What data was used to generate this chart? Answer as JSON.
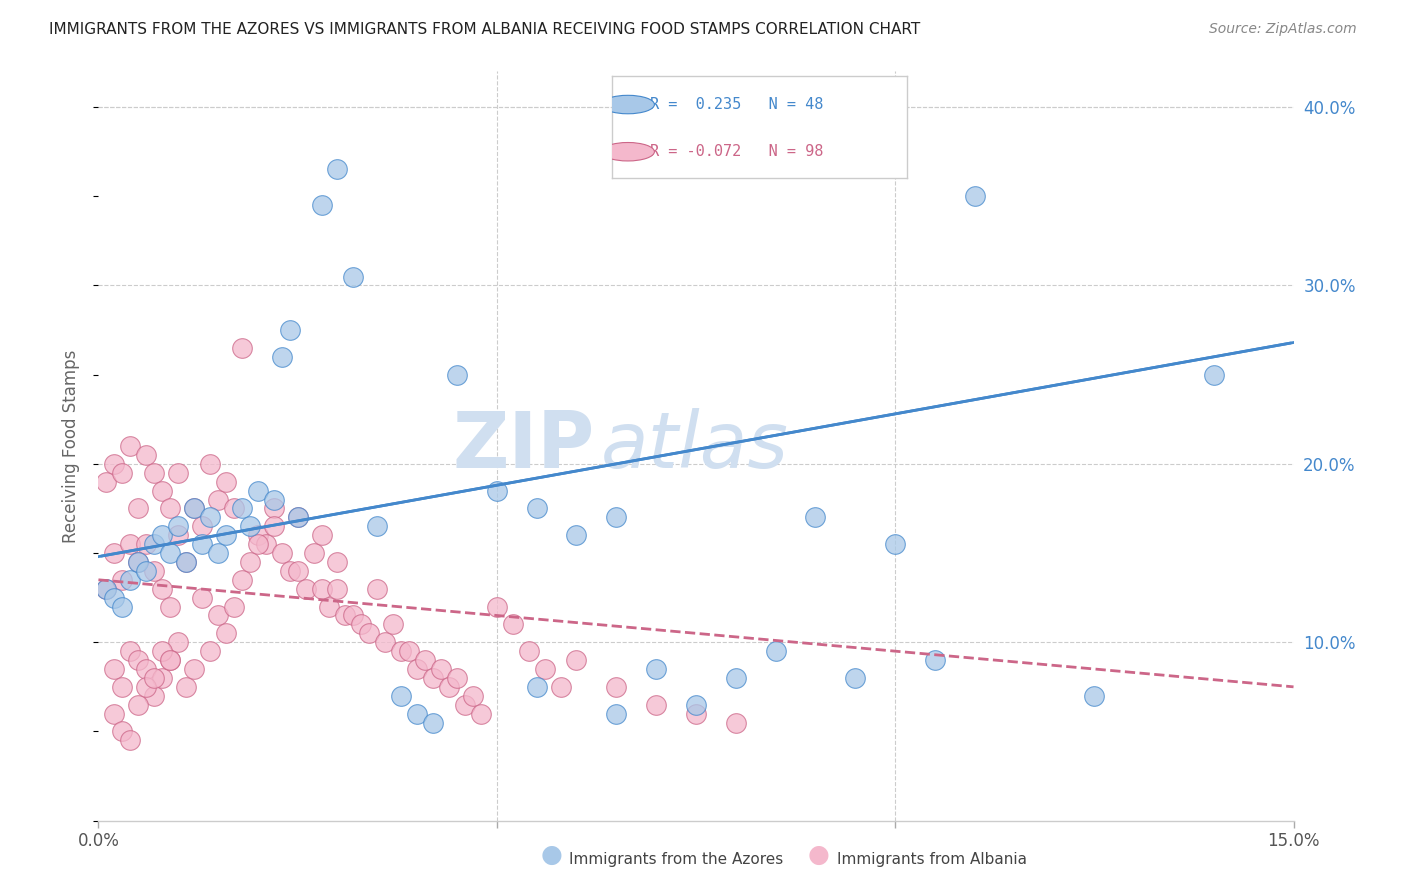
{
  "title": "IMMIGRANTS FROM THE AZORES VS IMMIGRANTS FROM ALBANIA RECEIVING FOOD STAMPS CORRELATION CHART",
  "source": "Source: ZipAtlas.com",
  "ylabel": "Receiving Food Stamps",
  "xlim": [
    0.0,
    0.15
  ],
  "ylim": [
    0.0,
    0.42
  ],
  "y_ticks_right": [
    0.1,
    0.2,
    0.3,
    0.4
  ],
  "y_tick_labels_right": [
    "10.0%",
    "20.0%",
    "30.0%",
    "40.0%"
  ],
  "color_azores": "#a8c8e8",
  "color_albania": "#f4b8cc",
  "color_trend_azores": "#4488cc",
  "color_trend_albania": "#cc6688",
  "watermark_zip": "ZIP",
  "watermark_atlas": "atlas",
  "watermark_color": "#d0dff0",
  "footer_azores": "Immigrants from the Azores",
  "footer_albania": "Immigrants from Albania",
  "azores_x": [
    0.001,
    0.002,
    0.003,
    0.004,
    0.005,
    0.006,
    0.007,
    0.008,
    0.009,
    0.01,
    0.011,
    0.012,
    0.013,
    0.014,
    0.015,
    0.016,
    0.018,
    0.019,
    0.02,
    0.022,
    0.023,
    0.024,
    0.025,
    0.028,
    0.03,
    0.032,
    0.035,
    0.038,
    0.04,
    0.042,
    0.045,
    0.05,
    0.055,
    0.06,
    0.065,
    0.07,
    0.08,
    0.09,
    0.1,
    0.11,
    0.125,
    0.14,
    0.105,
    0.095,
    0.085,
    0.075,
    0.065,
    0.055
  ],
  "azores_y": [
    0.13,
    0.125,
    0.12,
    0.135,
    0.145,
    0.14,
    0.155,
    0.16,
    0.15,
    0.165,
    0.145,
    0.175,
    0.155,
    0.17,
    0.15,
    0.16,
    0.175,
    0.165,
    0.185,
    0.18,
    0.26,
    0.275,
    0.17,
    0.345,
    0.365,
    0.305,
    0.165,
    0.07,
    0.06,
    0.055,
    0.25,
    0.185,
    0.175,
    0.16,
    0.17,
    0.085,
    0.08,
    0.17,
    0.155,
    0.35,
    0.07,
    0.25,
    0.09,
    0.08,
    0.095,
    0.065,
    0.06,
    0.075
  ],
  "albania_x": [
    0.001,
    0.001,
    0.002,
    0.002,
    0.002,
    0.003,
    0.003,
    0.003,
    0.004,
    0.004,
    0.004,
    0.005,
    0.005,
    0.005,
    0.006,
    0.006,
    0.006,
    0.007,
    0.007,
    0.007,
    0.008,
    0.008,
    0.008,
    0.009,
    0.009,
    0.009,
    0.01,
    0.01,
    0.01,
    0.011,
    0.011,
    0.012,
    0.012,
    0.013,
    0.013,
    0.014,
    0.014,
    0.015,
    0.015,
    0.016,
    0.016,
    0.017,
    0.017,
    0.018,
    0.018,
    0.019,
    0.02,
    0.021,
    0.022,
    0.023,
    0.024,
    0.025,
    0.026,
    0.027,
    0.028,
    0.029,
    0.03,
    0.031,
    0.032,
    0.033,
    0.034,
    0.035,
    0.036,
    0.037,
    0.038,
    0.039,
    0.04,
    0.041,
    0.042,
    0.043,
    0.044,
    0.045,
    0.046,
    0.047,
    0.048,
    0.05,
    0.052,
    0.054,
    0.056,
    0.058,
    0.06,
    0.065,
    0.07,
    0.075,
    0.08,
    0.02,
    0.022,
    0.025,
    0.028,
    0.03,
    0.002,
    0.003,
    0.004,
    0.005,
    0.006,
    0.007,
    0.008,
    0.009
  ],
  "albania_y": [
    0.13,
    0.19,
    0.085,
    0.15,
    0.2,
    0.075,
    0.135,
    0.195,
    0.095,
    0.155,
    0.21,
    0.09,
    0.145,
    0.175,
    0.085,
    0.155,
    0.205,
    0.07,
    0.14,
    0.195,
    0.08,
    0.13,
    0.185,
    0.09,
    0.12,
    0.175,
    0.1,
    0.16,
    0.195,
    0.075,
    0.145,
    0.085,
    0.175,
    0.125,
    0.165,
    0.095,
    0.2,
    0.115,
    0.18,
    0.105,
    0.19,
    0.12,
    0.175,
    0.135,
    0.265,
    0.145,
    0.16,
    0.155,
    0.175,
    0.15,
    0.14,
    0.14,
    0.13,
    0.15,
    0.13,
    0.12,
    0.13,
    0.115,
    0.115,
    0.11,
    0.105,
    0.13,
    0.1,
    0.11,
    0.095,
    0.095,
    0.085,
    0.09,
    0.08,
    0.085,
    0.075,
    0.08,
    0.065,
    0.07,
    0.06,
    0.12,
    0.11,
    0.095,
    0.085,
    0.075,
    0.09,
    0.075,
    0.065,
    0.06,
    0.055,
    0.155,
    0.165,
    0.17,
    0.16,
    0.145,
    0.06,
    0.05,
    0.045,
    0.065,
    0.075,
    0.08,
    0.095,
    0.09
  ],
  "trend_azores_x0": 0.0,
  "trend_azores_y0": 0.148,
  "trend_azores_x1": 0.15,
  "trend_azores_y1": 0.268,
  "trend_albania_x0": 0.0,
  "trend_albania_y0": 0.135,
  "trend_albania_x1": 0.15,
  "trend_albania_y1": 0.075
}
